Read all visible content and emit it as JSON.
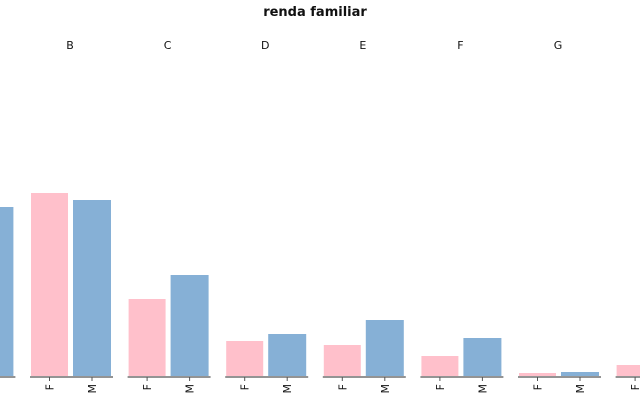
{
  "chart_data": {
    "type": "bar",
    "title": "renda familiar",
    "facets": [
      null,
      "B",
      "C",
      "D",
      "E",
      "F",
      "G",
      null
    ],
    "series": [
      {
        "name": "F",
        "color": "#ffc0cb",
        "values": [
          null,
          183,
          77,
          35,
          31,
          20,
          3,
          11
        ]
      },
      {
        "name": "M",
        "color": "#86b0d6",
        "values": [
          169,
          176,
          101,
          42,
          56,
          38,
          4,
          null
        ]
      }
    ],
    "ylim": [
      0,
      200
    ]
  }
}
